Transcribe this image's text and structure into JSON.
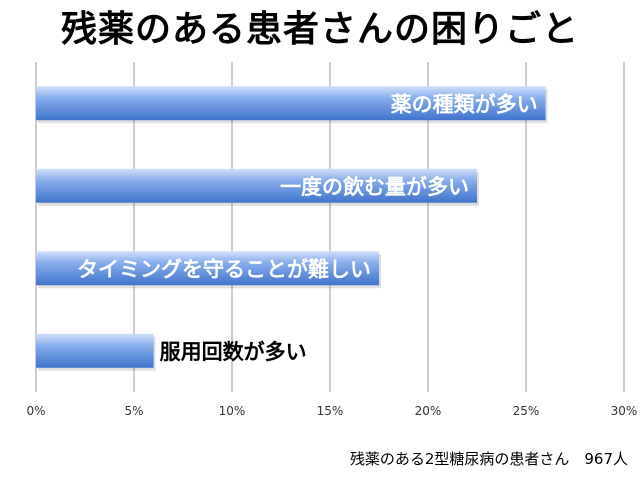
{
  "chart_data": {
    "type": "bar",
    "orientation": "horizontal",
    "title": "残薬のある患者さんの困りごと",
    "categories": [
      "薬の種類が多い",
      "一度の飲む量が多い",
      "タイミングを守ることが難しい",
      "服用回数が多い"
    ],
    "values": [
      26,
      22.5,
      17.5,
      6
    ],
    "xlim": [
      0,
      30
    ],
    "xticks": [
      "0%",
      "5%",
      "10%",
      "15%",
      "20%",
      "25%",
      "30%"
    ],
    "grid": "vertical",
    "bar_color": "#4a7fd1",
    "footnote": "残薬のある2型糖尿病の患者さん　967人"
  }
}
